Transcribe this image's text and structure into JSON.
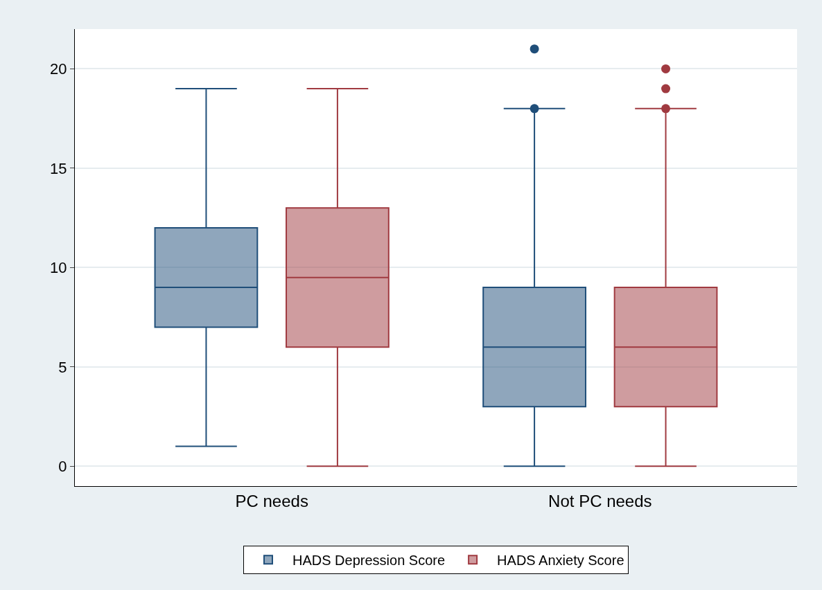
{
  "chart_data": {
    "type": "box",
    "categories": [
      "PC needs",
      "Not PC needs"
    ],
    "series": [
      {
        "name": "HADS Depression Score",
        "color": "#1f4e79",
        "boxes": [
          {
            "low": 1,
            "q1": 7,
            "median": 9,
            "q3": 12,
            "high": 19
          },
          {
            "low": 0,
            "q1": 3,
            "median": 6,
            "q3": 9,
            "high": 18,
            "outliers": [
              18,
              21
            ]
          }
        ]
      },
      {
        "name": "HADS Anxiety Score",
        "color": "#a03a40",
        "boxes": [
          {
            "low": 0,
            "q1": 6,
            "median": 9.5,
            "q3": 13,
            "high": 19
          },
          {
            "low": 0,
            "q1": 3,
            "median": 6,
            "q3": 9,
            "high": 18,
            "outliers": [
              18,
              19,
              20
            ]
          }
        ]
      }
    ],
    "ylim": [
      -1,
      22
    ],
    "yticks": [
      0,
      5,
      10,
      15,
      20
    ],
    "grid": "y",
    "legend": "bottom"
  }
}
